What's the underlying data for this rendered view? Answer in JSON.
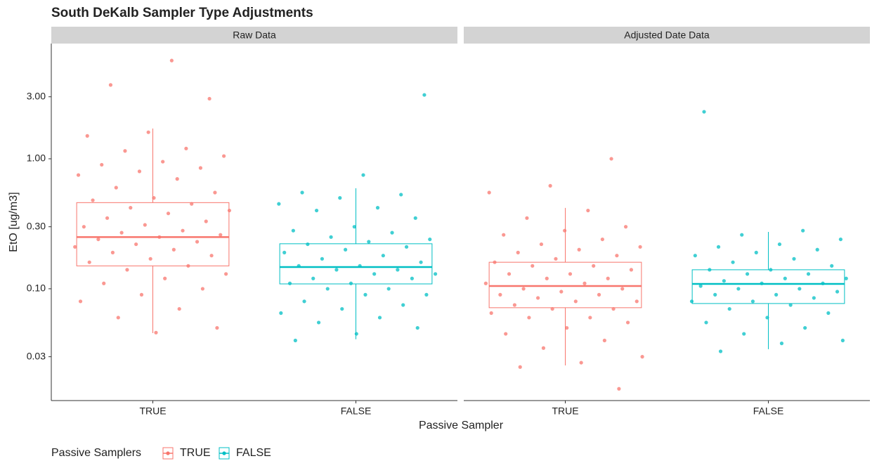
{
  "chart_data": {
    "type": "box",
    "title": "South DeKalb Sampler Type Adjustments",
    "xlabel": "Passive Sampler",
    "ylabel": "EtO [ug/m3]",
    "legend_title": "Passive Samplers",
    "log_scale": true,
    "ylim": [
      0.0138,
      7.7
    ],
    "yticks": [
      {
        "value": 0.03,
        "label": "0.03"
      },
      {
        "value": 0.1,
        "label": "0.10"
      },
      {
        "value": 0.3,
        "label": "0.30"
      },
      {
        "value": 1,
        "label": "1.00"
      },
      {
        "value": 3,
        "label": "3.00"
      }
    ],
    "series": [
      {
        "name": "TRUE",
        "color": "#F8766D"
      },
      {
        "name": "FALSE",
        "color": "#00BFC4"
      }
    ],
    "facets": [
      {
        "title": "Raw Data",
        "categories": [
          "TRUE",
          "FALSE"
        ],
        "boxes": [
          {
            "whisker_low": 0.0456,
            "q1": 0.15,
            "median": 0.25,
            "q3": 0.46,
            "whisker_high": 1.71,
            "points": [
              5.7,
              3.7,
              2.9,
              1.6,
              1.5,
              1.2,
              1.15,
              1.05,
              0.95,
              0.9,
              0.85,
              0.8,
              0.75,
              0.7,
              0.6,
              0.55,
              0.5,
              0.48,
              0.45,
              0.42,
              0.4,
              0.38,
              0.35,
              0.33,
              0.31,
              0.3,
              0.28,
              0.27,
              0.26,
              0.25,
              0.24,
              0.23,
              0.22,
              0.21,
              0.2,
              0.19,
              0.18,
              0.17,
              0.16,
              0.15,
              0.14,
              0.13,
              0.12,
              0.11,
              0.1,
              0.09,
              0.08,
              0.07,
              0.06,
              0.05,
              0.046
            ]
          },
          {
            "whisker_low": 0.0409,
            "q1": 0.109,
            "median": 0.147,
            "q3": 0.222,
            "whisker_high": 0.593,
            "points": [
              3.1,
              0.75,
              0.55,
              0.53,
              0.5,
              0.45,
              0.42,
              0.4,
              0.35,
              0.3,
              0.28,
              0.27,
              0.25,
              0.24,
              0.23,
              0.22,
              0.21,
              0.2,
              0.19,
              0.18,
              0.17,
              0.16,
              0.15,
              0.15,
              0.14,
              0.14,
              0.13,
              0.13,
              0.12,
              0.12,
              0.11,
              0.11,
              0.1,
              0.1,
              0.09,
              0.09,
              0.08,
              0.075,
              0.07,
              0.065,
              0.06,
              0.055,
              0.05,
              0.045,
              0.04
            ]
          }
        ]
      },
      {
        "title": "Adjusted Date Data",
        "categories": [
          "TRUE",
          "FALSE"
        ],
        "boxes": [
          {
            "whisker_low": 0.0257,
            "q1": 0.0715,
            "median": 0.105,
            "q3": 0.16,
            "whisker_high": 0.419,
            "points": [
              1.0,
              0.62,
              0.55,
              0.4,
              0.35,
              0.3,
              0.28,
              0.26,
              0.24,
              0.22,
              0.21,
              0.2,
              0.19,
              0.18,
              0.17,
              0.16,
              0.15,
              0.15,
              0.14,
              0.13,
              0.13,
              0.12,
              0.12,
              0.11,
              0.11,
              0.1,
              0.1,
              0.095,
              0.09,
              0.09,
              0.085,
              0.08,
              0.08,
              0.075,
              0.07,
              0.07,
              0.065,
              0.06,
              0.06,
              0.055,
              0.05,
              0.045,
              0.04,
              0.035,
              0.03,
              0.027,
              0.025,
              0.017
            ]
          },
          {
            "whisker_low": 0.0343,
            "q1": 0.077,
            "median": 0.109,
            "q3": 0.14,
            "whisker_high": 0.274,
            "points": [
              2.3,
              0.28,
              0.26,
              0.24,
              0.22,
              0.21,
              0.2,
              0.19,
              0.18,
              0.17,
              0.16,
              0.15,
              0.14,
              0.14,
              0.13,
              0.13,
              0.12,
              0.12,
              0.115,
              0.11,
              0.11,
              0.105,
              0.1,
              0.1,
              0.095,
              0.09,
              0.09,
              0.085,
              0.08,
              0.08,
              0.075,
              0.07,
              0.065,
              0.06,
              0.055,
              0.05,
              0.045,
              0.04,
              0.038,
              0.033
            ]
          }
        ]
      }
    ]
  }
}
